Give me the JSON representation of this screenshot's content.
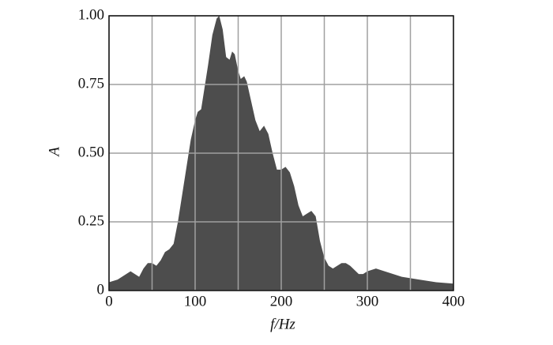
{
  "chart_data": {
    "type": "area",
    "xlabel": "f/Hz",
    "ylabel": "A",
    "color": "#4d4d4d",
    "x": [
      0,
      10,
      20,
      25,
      30,
      35,
      40,
      45,
      50,
      55,
      60,
      65,
      70,
      75,
      80,
      85,
      90,
      95,
      100,
      103,
      107,
      110,
      115,
      120,
      125,
      128,
      132,
      136,
      140,
      143,
      146,
      150,
      153,
      157,
      160,
      165,
      170,
      175,
      180,
      185,
      190,
      195,
      200,
      205,
      210,
      215,
      220,
      225,
      230,
      235,
      240,
      245,
      250,
      255,
      260,
      270,
      275,
      280,
      290,
      295,
      300,
      310,
      320,
      340,
      360,
      380,
      400
    ],
    "values": [
      0.03,
      0.04,
      0.06,
      0.07,
      0.06,
      0.05,
      0.08,
      0.1,
      0.1,
      0.09,
      0.11,
      0.14,
      0.15,
      0.17,
      0.25,
      0.35,
      0.45,
      0.55,
      0.62,
      0.65,
      0.66,
      0.72,
      0.82,
      0.93,
      0.99,
      1.0,
      0.95,
      0.85,
      0.84,
      0.87,
      0.86,
      0.8,
      0.77,
      0.78,
      0.76,
      0.69,
      0.62,
      0.58,
      0.6,
      0.57,
      0.5,
      0.44,
      0.44,
      0.45,
      0.43,
      0.38,
      0.31,
      0.27,
      0.28,
      0.29,
      0.27,
      0.18,
      0.12,
      0.09,
      0.08,
      0.1,
      0.1,
      0.09,
      0.06,
      0.06,
      0.07,
      0.08,
      0.07,
      0.05,
      0.04,
      0.03,
      0.025
    ],
    "xlim": [
      0,
      400
    ],
    "xticks": [
      0,
      100,
      200,
      300,
      400
    ],
    "x_minor_grid": [
      50,
      150,
      250,
      350
    ],
    "ylim": [
      0,
      1
    ],
    "yticks": [
      0,
      0.25,
      {
        "value": 0.5,
        "label": "0.50"
      },
      0.75,
      {
        "value": 1,
        "label": "1.00"
      }
    ],
    "grid": true
  }
}
